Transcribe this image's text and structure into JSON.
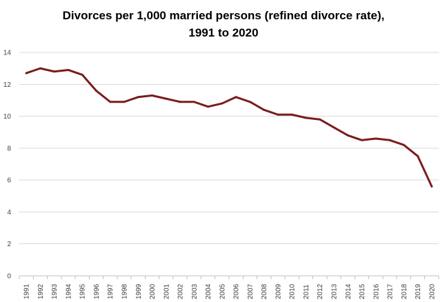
{
  "chart_data": {
    "type": "line",
    "title_lines": [
      "Divorces per 1,000 married persons (refined divorce rate),",
      "1991 to 2020"
    ],
    "xlabel": "",
    "ylabel": "",
    "ylim": [
      0,
      14
    ],
    "ytick_step": 2,
    "yticks": [
      "0",
      "2",
      "4",
      "6",
      "8",
      "10",
      "12",
      "14"
    ],
    "grid": "horizontal",
    "legend": "none",
    "categories": [
      "1991",
      "1992",
      "1993",
      "1994",
      "1995",
      "1996",
      "1997",
      "1998",
      "1999",
      "2000",
      "2001",
      "2002",
      "2003",
      "2004",
      "2005",
      "2006",
      "2007",
      "2008",
      "2009",
      "2010",
      "2011",
      "2012",
      "2013",
      "2014",
      "2015",
      "2016",
      "2017",
      "2018",
      "2019",
      "2020"
    ],
    "series": [
      {
        "values": [
          12.7,
          13.0,
          12.8,
          12.9,
          12.6,
          11.6,
          10.9,
          10.9,
          11.2,
          11.3,
          11.1,
          10.9,
          10.9,
          10.6,
          10.8,
          11.2,
          10.9,
          10.4,
          10.1,
          10.1,
          9.9,
          9.8,
          9.3,
          8.8,
          8.5,
          8.6,
          8.5,
          8.2,
          7.5,
          5.6
        ],
        "color": "#7b1c1c"
      }
    ],
    "colors": {
      "line": "#7b1c1c",
      "grid": "#d9d9d9",
      "axis": "#bfbfbf",
      "text": "#404040"
    }
  }
}
